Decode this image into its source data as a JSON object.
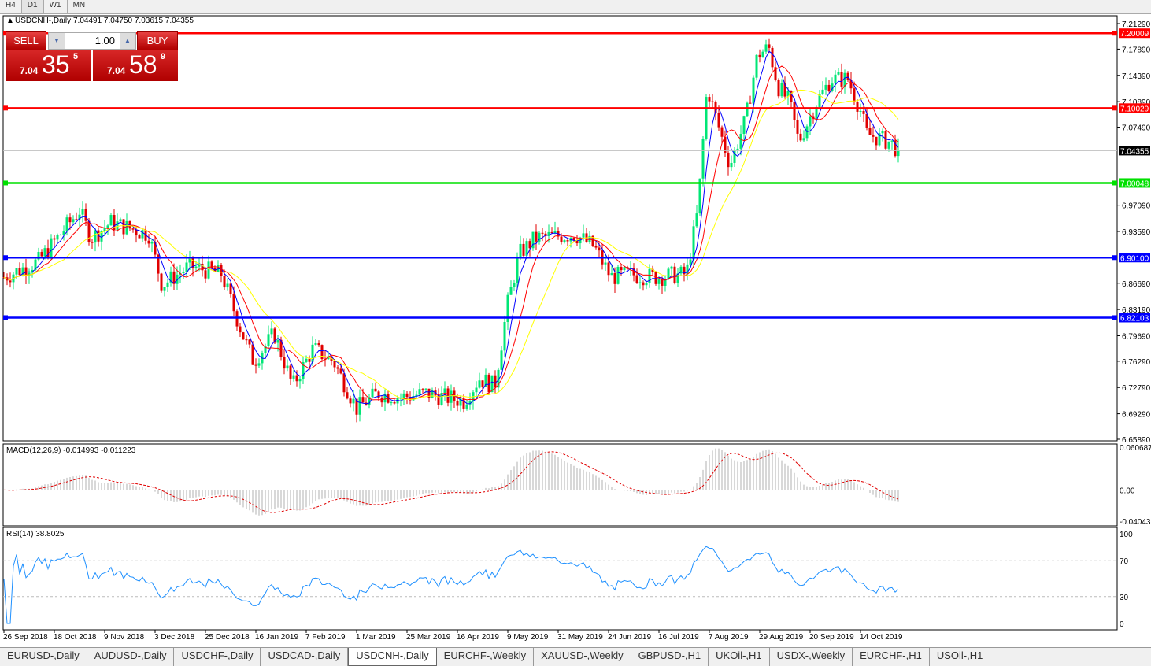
{
  "timeframes": [
    "H4",
    "D1",
    "W1",
    "MN"
  ],
  "active_timeframe": "D1",
  "header": {
    "symbol": "USDCNH-,Daily",
    "ohlc": "7.04491 7.04750 7.03615 7.04355"
  },
  "trade_panel": {
    "sell_label": "SELL",
    "buy_label": "BUY",
    "lot": "1.00",
    "sell_prefix": "7.04",
    "sell_big": "35",
    "sell_pip": "5",
    "buy_prefix": "7.04",
    "buy_big": "58",
    "buy_pip": "9"
  },
  "chart_data": [
    {
      "type": "candlestick",
      "name": "USDCNH-,Daily",
      "ylim": [
        6.6589,
        7.2129
      ],
      "yticks": [
        "7.21290",
        "7.17890",
        "7.14390",
        "7.10890",
        "7.07490",
        "6.97090",
        "6.93590",
        "6.86690",
        "6.83190",
        "6.79690",
        "6.76290",
        "6.72790",
        "6.69290",
        "6.65890"
      ],
      "xticks": [
        "26 Sep 2018",
        "18 Oct 2018",
        "9 Nov 2018",
        "3 Dec 2018",
        "25 Dec 2018",
        "16 Jan 2019",
        "7 Feb 2019",
        "1 Mar 2019",
        "25 Mar 2019",
        "16 Apr 2019",
        "9 May 2019",
        "31 May 2019",
        "24 Jun 2019",
        "16 Jul 2019",
        "7 Aug 2019",
        "29 Aug 2019",
        "20 Sep 2019",
        "14 Oct 2019"
      ],
      "xtick_dates": [
        "2018-09-26",
        "2018-10-18",
        "2018-11-09",
        "2018-12-03",
        "2018-12-25",
        "2019-01-16",
        "2019-02-07",
        "2019-03-01",
        "2019-03-25",
        "2019-04-16",
        "2019-05-09",
        "2019-05-31",
        "2019-06-24",
        "2019-07-16",
        "2019-08-07",
        "2019-08-29",
        "2019-09-20",
        "2019-10-14"
      ],
      "close_path": [
        [
          "2018-09-26",
          6.875
        ],
        [
          "2018-10-11",
          6.896
        ],
        [
          "2018-10-29",
          6.964
        ],
        [
          "2018-11-03",
          6.927
        ],
        [
          "2018-11-12",
          6.948
        ],
        [
          "2018-11-30",
          6.932
        ],
        [
          "2018-12-06",
          6.864
        ],
        [
          "2018-12-18",
          6.89
        ],
        [
          "2019-01-01",
          6.879
        ],
        [
          "2019-01-10",
          6.8
        ],
        [
          "2019-01-15",
          6.762
        ],
        [
          "2019-01-24",
          6.8
        ],
        [
          "2019-02-01",
          6.73
        ],
        [
          "2019-02-10",
          6.78
        ],
        [
          "2019-02-19",
          6.762
        ],
        [
          "2019-03-01",
          6.7
        ],
        [
          "2019-03-11",
          6.72
        ],
        [
          "2019-03-22",
          6.715
        ],
        [
          "2019-04-02",
          6.72
        ],
        [
          "2019-04-19",
          6.71
        ],
        [
          "2019-04-26",
          6.74
        ],
        [
          "2019-05-03",
          6.73
        ],
        [
          "2019-05-09",
          6.84
        ],
        [
          "2019-05-14",
          6.906
        ],
        [
          "2019-05-21",
          6.927
        ],
        [
          "2019-06-08",
          6.932
        ],
        [
          "2019-06-17",
          6.916
        ],
        [
          "2019-06-25",
          6.875
        ],
        [
          "2019-07-03",
          6.879
        ],
        [
          "2019-07-14",
          6.875
        ],
        [
          "2019-07-28",
          6.879
        ],
        [
          "2019-08-02",
          6.964
        ],
        [
          "2019-08-06",
          7.129
        ],
        [
          "2019-08-11",
          7.076
        ],
        [
          "2019-08-16",
          7.024
        ],
        [
          "2019-08-23",
          7.087
        ],
        [
          "2019-08-28",
          7.171
        ],
        [
          "2019-09-02",
          7.181
        ],
        [
          "2019-09-06",
          7.129
        ],
        [
          "2019-09-11",
          7.108
        ],
        [
          "2019-09-15",
          7.055
        ],
        [
          "2019-09-23",
          7.108
        ],
        [
          "2019-09-30",
          7.139
        ],
        [
          "2019-10-08",
          7.139
        ],
        [
          "2019-10-14",
          7.097
        ],
        [
          "2019-10-17",
          7.066
        ],
        [
          "2019-10-28",
          7.055
        ],
        [
          "2019-11-01",
          7.04355
        ]
      ],
      "hlines": [
        {
          "value": 7.20009,
          "label": "7.20009",
          "color": "#ff0000"
        },
        {
          "value": 7.10029,
          "label": "7.10029",
          "color": "#ff0000"
        },
        {
          "value": 7.00048,
          "label": "7.00048",
          "color": "#00e000"
        },
        {
          "value": 6.901,
          "label": "6.90100",
          "color": "#0000ff"
        },
        {
          "value": 6.82103,
          "label": "6.82103",
          "color": "#0000ff"
        }
      ],
      "current_price": {
        "value": 7.04355,
        "label": "7.04355"
      },
      "colors": {
        "bull": "#00e676",
        "bear": "#e00000",
        "ma_fast": "#0000ff",
        "ma_mid": "#ff0000",
        "ma_slow": "#ffff00"
      }
    },
    {
      "type": "macd",
      "label": "MACD(12,26,9) -0.014993 -0.011223",
      "yticks": [
        "0.060687",
        "0.00",
        "-0.040432"
      ],
      "ylim": [
        -0.040432,
        0.060687
      ]
    },
    {
      "type": "line",
      "label": "RSI(14) 38.8025",
      "yticks": [
        "100",
        "70",
        "30",
        "0"
      ],
      "ylim": [
        0,
        100
      ],
      "levels": [
        70,
        30
      ]
    }
  ],
  "tabs": [
    "EURUSD-,Daily",
    "AUDUSD-,Daily",
    "USDCHF-,Daily",
    "USDCAD-,Daily",
    "USDCNH-,Daily",
    "EURCHF-,Weekly",
    "XAUUSD-,Weekly",
    "GBPUSD-,H1",
    "UKOil-,H1",
    "USDX-,Weekly",
    "EURCHF-,H1",
    "USOil-,H1"
  ],
  "active_tab": "USDCNH-,Daily"
}
